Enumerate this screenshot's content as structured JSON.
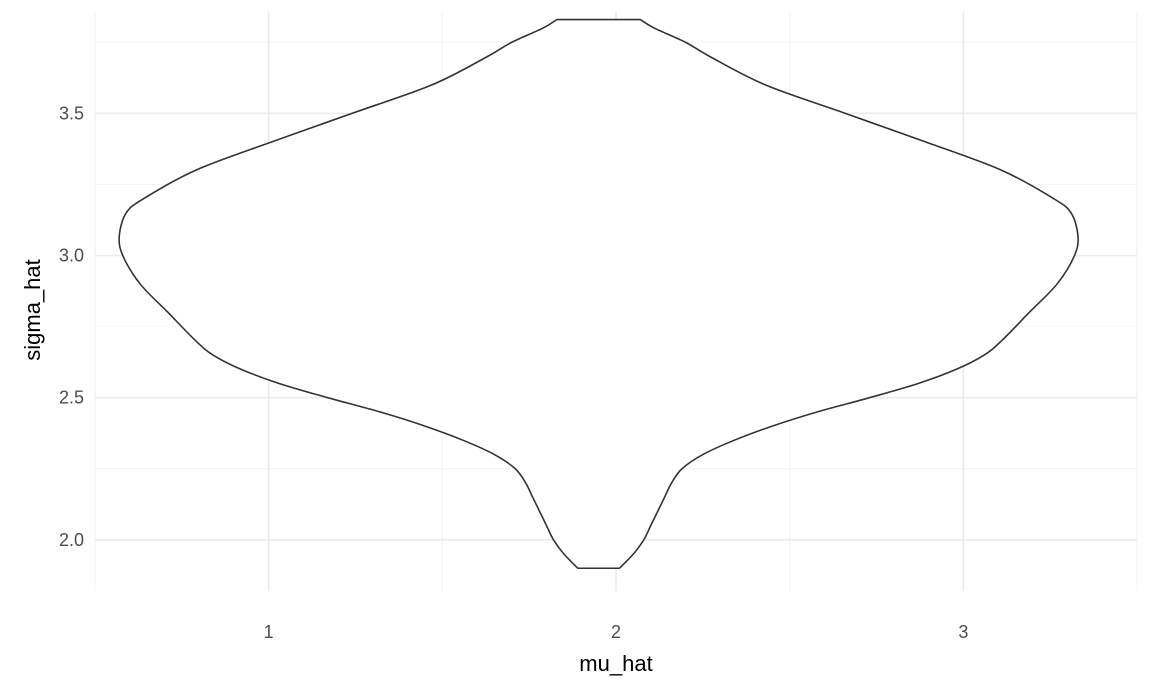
{
  "chart_data": {
    "type": "violin",
    "xlabel": "mu_hat",
    "ylabel": "sigma_hat",
    "xlim": [
      0.5,
      3.5
    ],
    "ylim": [
      1.82,
      3.86
    ],
    "x_ticks": [
      1,
      2,
      3
    ],
    "x_tick_labels": [
      "1",
      "2",
      "3"
    ],
    "y_ticks": [
      2.0,
      2.5,
      3.0,
      3.5
    ],
    "y_tick_labels": [
      "2.0",
      "2.5",
      "3.0",
      "3.5"
    ],
    "grid": true,
    "violin": {
      "center_x": 1.95,
      "outline_color": "#333333",
      "fill_color": "#ffffff",
      "profile": [
        {
          "y": 1.9,
          "half_width": 0.06
        },
        {
          "y": 1.95,
          "half_width": 0.1
        },
        {
          "y": 2.0,
          "half_width": 0.13
        },
        {
          "y": 2.05,
          "half_width": 0.15
        },
        {
          "y": 2.1,
          "half_width": 0.17
        },
        {
          "y": 2.15,
          "half_width": 0.19
        },
        {
          "y": 2.2,
          "half_width": 0.21
        },
        {
          "y": 2.25,
          "half_width": 0.24
        },
        {
          "y": 2.3,
          "half_width": 0.3
        },
        {
          "y": 2.35,
          "half_width": 0.39
        },
        {
          "y": 2.4,
          "half_width": 0.5
        },
        {
          "y": 2.45,
          "half_width": 0.63
        },
        {
          "y": 2.5,
          "half_width": 0.78
        },
        {
          "y": 2.55,
          "half_width": 0.92
        },
        {
          "y": 2.6,
          "half_width": 1.03
        },
        {
          "y": 2.65,
          "half_width": 1.11
        },
        {
          "y": 2.7,
          "half_width": 1.16
        },
        {
          "y": 2.8,
          "half_width": 1.24
        },
        {
          "y": 2.9,
          "half_width": 1.32
        },
        {
          "y": 3.0,
          "half_width": 1.37
        },
        {
          "y": 3.07,
          "half_width": 1.38
        },
        {
          "y": 3.15,
          "half_width": 1.36
        },
        {
          "y": 3.2,
          "half_width": 1.31
        },
        {
          "y": 3.3,
          "half_width": 1.16
        },
        {
          "y": 3.4,
          "half_width": 0.94
        },
        {
          "y": 3.5,
          "half_width": 0.71
        },
        {
          "y": 3.6,
          "half_width": 0.48
        },
        {
          "y": 3.7,
          "half_width": 0.32
        },
        {
          "y": 3.75,
          "half_width": 0.25
        },
        {
          "y": 3.8,
          "half_width": 0.16
        },
        {
          "y": 3.83,
          "half_width": 0.12
        }
      ]
    }
  }
}
